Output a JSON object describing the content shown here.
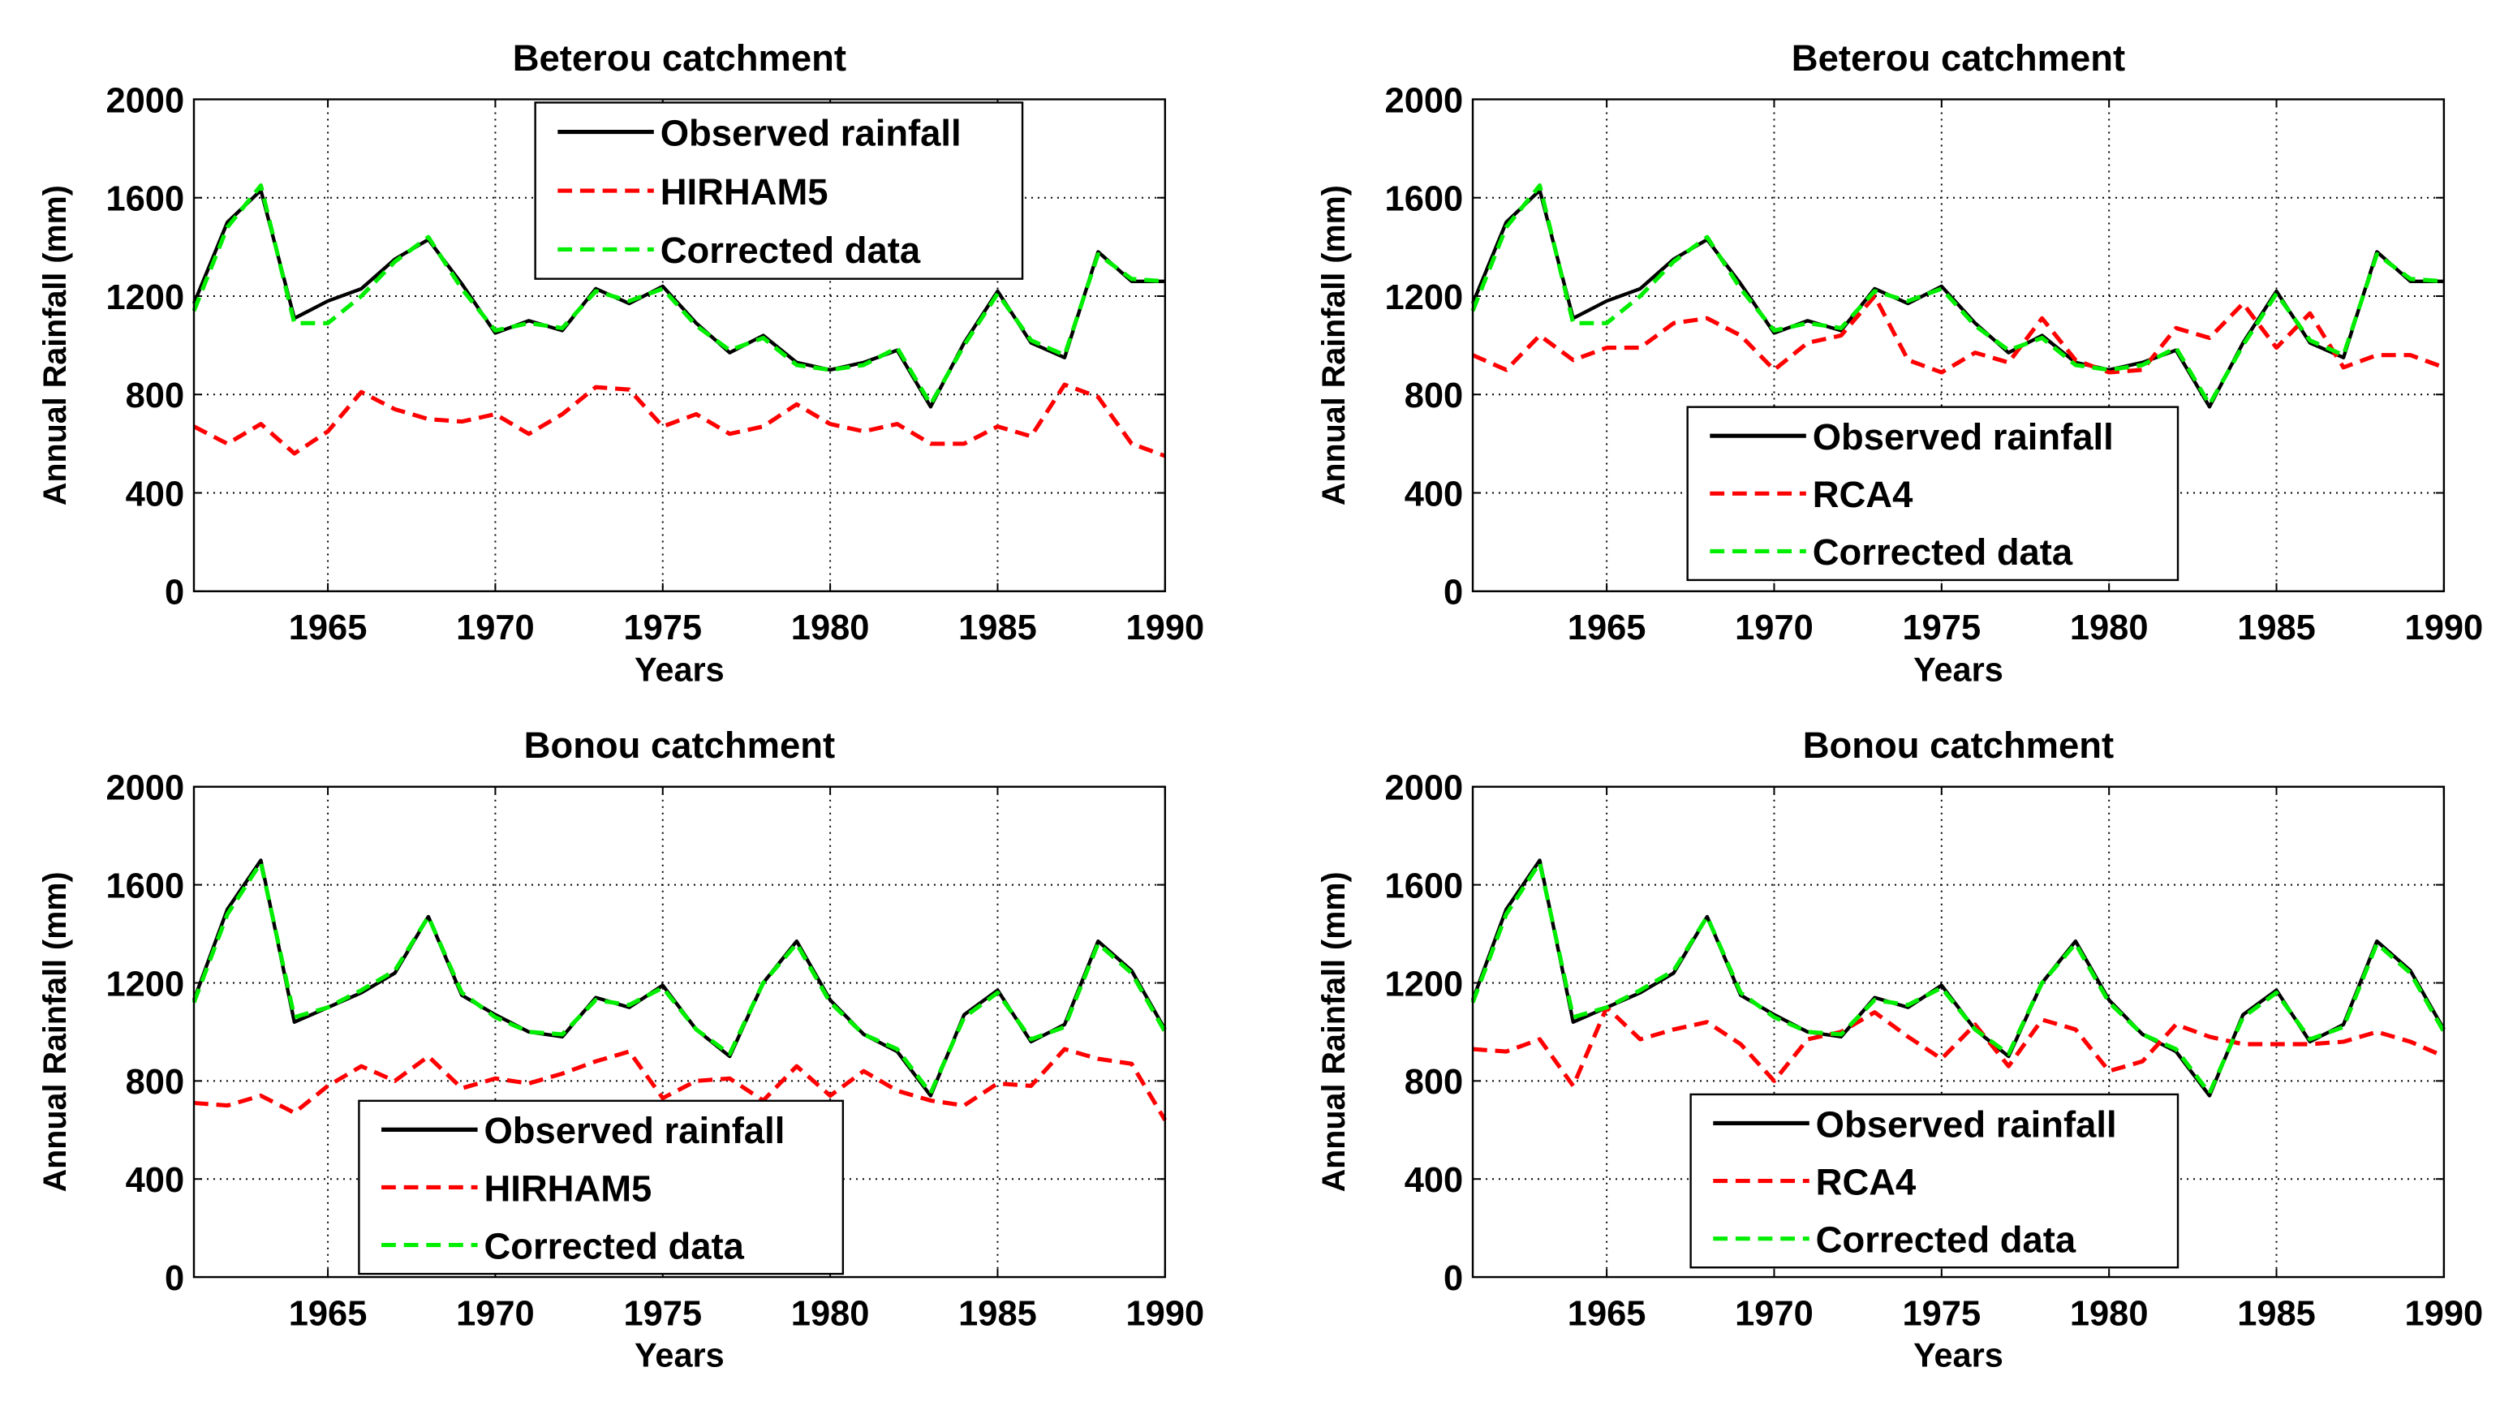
{
  "chart_data": [
    {
      "type": "line",
      "title": "Beterou catchment",
      "xlabel": "Years",
      "ylabel": "Annual Rainfall (mm)",
      "xlim": [
        1961,
        1990
      ],
      "ylim": [
        0,
        2000
      ],
      "xticks": [
        1965,
        1970,
        1975,
        1980,
        1985,
        1990
      ],
      "yticks": [
        0,
        400,
        800,
        1200,
        1600,
        2000
      ],
      "grid": true,
      "legend_position": "top-right",
      "x": [
        1961,
        1962,
        1963,
        1964,
        1965,
        1966,
        1967,
        1968,
        1969,
        1970,
        1971,
        1972,
        1973,
        1974,
        1975,
        1976,
        1977,
        1978,
        1979,
        1980,
        1981,
        1982,
        1983,
        1984,
        1985,
        1986,
        1987,
        1988,
        1989,
        1990
      ],
      "series": [
        {
          "name": "Observed rainfall",
          "color": "#000000",
          "dash": "solid",
          "values": [
            1170,
            1500,
            1630,
            1110,
            1180,
            1230,
            1350,
            1430,
            1250,
            1050,
            1100,
            1060,
            1230,
            1170,
            1240,
            1090,
            970,
            1040,
            930,
            900,
            930,
            980,
            750,
            1010,
            1220,
            1010,
            950,
            1380,
            1260,
            1260
          ]
        },
        {
          "name": "HIRHAM5",
          "color": "#ff0000",
          "dash": "dashed",
          "values": [
            670,
            600,
            680,
            560,
            650,
            810,
            740,
            700,
            690,
            720,
            640,
            720,
            830,
            820,
            670,
            720,
            640,
            670,
            760,
            680,
            650,
            680,
            600,
            600,
            670,
            630,
            840,
            790,
            600,
            550
          ]
        },
        {
          "name": "Corrected data",
          "color": "#00ee00",
          "dash": "dashed",
          "values": [
            1140,
            1480,
            1650,
            1090,
            1090,
            1200,
            1340,
            1440,
            1230,
            1060,
            1090,
            1070,
            1220,
            1180,
            1230,
            1080,
            980,
            1030,
            920,
            900,
            920,
            990,
            760,
            1000,
            1210,
            1020,
            960,
            1370,
            1270,
            1260
          ]
        }
      ]
    },
    {
      "type": "line",
      "title": "Beterou catchment",
      "xlabel": "Years",
      "ylabel": "Annual Rainfall (mm)",
      "xlim": [
        1961,
        1990
      ],
      "ylim": [
        0,
        2000
      ],
      "xticks": [
        1965,
        1970,
        1975,
        1980,
        1985,
        1990
      ],
      "yticks": [
        0,
        400,
        800,
        1200,
        1600,
        2000
      ],
      "grid": true,
      "legend_position": "bottom-right",
      "x": [
        1961,
        1962,
        1963,
        1964,
        1965,
        1966,
        1967,
        1968,
        1969,
        1970,
        1971,
        1972,
        1973,
        1974,
        1975,
        1976,
        1977,
        1978,
        1979,
        1980,
        1981,
        1982,
        1983,
        1984,
        1985,
        1986,
        1987,
        1988,
        1989,
        1990
      ],
      "series": [
        {
          "name": "Observed rainfall",
          "color": "#000000",
          "dash": "solid",
          "values": [
            1170,
            1500,
            1630,
            1110,
            1180,
            1230,
            1350,
            1430,
            1250,
            1050,
            1100,
            1060,
            1230,
            1170,
            1240,
            1090,
            970,
            1040,
            930,
            900,
            930,
            980,
            750,
            1010,
            1220,
            1010,
            950,
            1380,
            1260,
            1260
          ]
        },
        {
          "name": "RCA4",
          "color": "#ff0000",
          "dash": "dashed",
          "values": [
            960,
            900,
            1040,
            940,
            990,
            990,
            1090,
            1110,
            1040,
            900,
            1010,
            1040,
            1200,
            940,
            890,
            970,
            930,
            1110,
            940,
            890,
            900,
            1070,
            1030,
            1170,
            990,
            1130,
            910,
            960,
            960,
            910
          ]
        },
        {
          "name": "Corrected data",
          "color": "#00ee00",
          "dash": "dashed",
          "values": [
            1140,
            1480,
            1650,
            1090,
            1090,
            1200,
            1340,
            1440,
            1230,
            1060,
            1090,
            1070,
            1220,
            1180,
            1230,
            1080,
            980,
            1030,
            920,
            900,
            920,
            990,
            760,
            1000,
            1210,
            1020,
            960,
            1370,
            1270,
            1260
          ]
        }
      ]
    },
    {
      "type": "line",
      "title": "Bonou catchment",
      "xlabel": "Years",
      "ylabel": "Annual Rainfall (mm)",
      "xlim": [
        1961,
        1990
      ],
      "ylim": [
        0,
        2000
      ],
      "xticks": [
        1965,
        1970,
        1975,
        1980,
        1985,
        1990
      ],
      "yticks": [
        0,
        400,
        800,
        1200,
        1600,
        2000
      ],
      "grid": true,
      "legend_position": "bottom-center",
      "x": [
        1961,
        1962,
        1963,
        1964,
        1965,
        1966,
        1967,
        1968,
        1969,
        1970,
        1971,
        1972,
        1973,
        1974,
        1975,
        1976,
        1977,
        1978,
        1979,
        1980,
        1981,
        1982,
        1983,
        1984,
        1985,
        1986,
        1987,
        1988,
        1989,
        1990
      ],
      "series": [
        {
          "name": "Observed rainfall",
          "color": "#000000",
          "dash": "solid",
          "values": [
            1130,
            1500,
            1700,
            1040,
            1100,
            1160,
            1240,
            1470,
            1150,
            1070,
            1000,
            980,
            1140,
            1100,
            1190,
            1010,
            900,
            1200,
            1370,
            1130,
            990,
            920,
            740,
            1070,
            1170,
            960,
            1030,
            1370,
            1250,
            1010
          ]
        },
        {
          "name": "HIRHAM5",
          "color": "#ff0000",
          "dash": "dashed",
          "values": [
            710,
            700,
            740,
            670,
            780,
            860,
            800,
            900,
            770,
            810,
            790,
            830,
            880,
            920,
            730,
            800,
            810,
            720,
            860,
            740,
            840,
            760,
            720,
            700,
            790,
            780,
            930,
            890,
            870,
            640
          ]
        },
        {
          "name": "Corrected data",
          "color": "#00ee00",
          "dash": "dashed",
          "values": [
            1120,
            1480,
            1690,
            1060,
            1100,
            1170,
            1250,
            1470,
            1160,
            1060,
            1000,
            990,
            1130,
            1110,
            1180,
            1010,
            910,
            1200,
            1360,
            1120,
            990,
            930,
            750,
            1060,
            1160,
            970,
            1020,
            1360,
            1240,
            1000
          ]
        }
      ]
    },
    {
      "type": "line",
      "title": "Bonou catchment",
      "xlabel": "Years",
      "ylabel": "Annual Rainfall (mm)",
      "xlim": [
        1961,
        1990
      ],
      "ylim": [
        0,
        2000
      ],
      "xticks": [
        1965,
        1970,
        1975,
        1980,
        1985,
        1990
      ],
      "yticks": [
        0,
        400,
        800,
        1200,
        1600,
        2000
      ],
      "grid": true,
      "legend_position": "bottom-right",
      "x": [
        1961,
        1962,
        1963,
        1964,
        1965,
        1966,
        1967,
        1968,
        1969,
        1970,
        1971,
        1972,
        1973,
        1974,
        1975,
        1976,
        1977,
        1978,
        1979,
        1980,
        1981,
        1982,
        1983,
        1984,
        1985,
        1986,
        1987,
        1988,
        1989,
        1990
      ],
      "series": [
        {
          "name": "Observed rainfall",
          "color": "#000000",
          "dash": "solid",
          "values": [
            1130,
            1500,
            1700,
            1040,
            1100,
            1160,
            1240,
            1470,
            1150,
            1070,
            1000,
            980,
            1140,
            1100,
            1190,
            1010,
            900,
            1200,
            1370,
            1130,
            990,
            920,
            740,
            1070,
            1170,
            960,
            1030,
            1370,
            1250,
            1010
          ]
        },
        {
          "name": "RCA4",
          "color": "#ff0000",
          "dash": "dashed",
          "values": [
            930,
            920,
            970,
            780,
            1100,
            970,
            1010,
            1040,
            950,
            800,
            970,
            1000,
            1080,
            980,
            890,
            1030,
            860,
            1050,
            1010,
            840,
            880,
            1030,
            980,
            950,
            950,
            950,
            960,
            1000,
            960,
            900
          ]
        },
        {
          "name": "Corrected data",
          "color": "#00ee00",
          "dash": "dashed",
          "values": [
            1120,
            1480,
            1690,
            1060,
            1100,
            1170,
            1250,
            1470,
            1160,
            1060,
            1000,
            990,
            1130,
            1110,
            1180,
            1010,
            910,
            1200,
            1360,
            1120,
            990,
            930,
            750,
            1060,
            1160,
            970,
            1020,
            1360,
            1240,
            1000
          ]
        }
      ]
    }
  ]
}
